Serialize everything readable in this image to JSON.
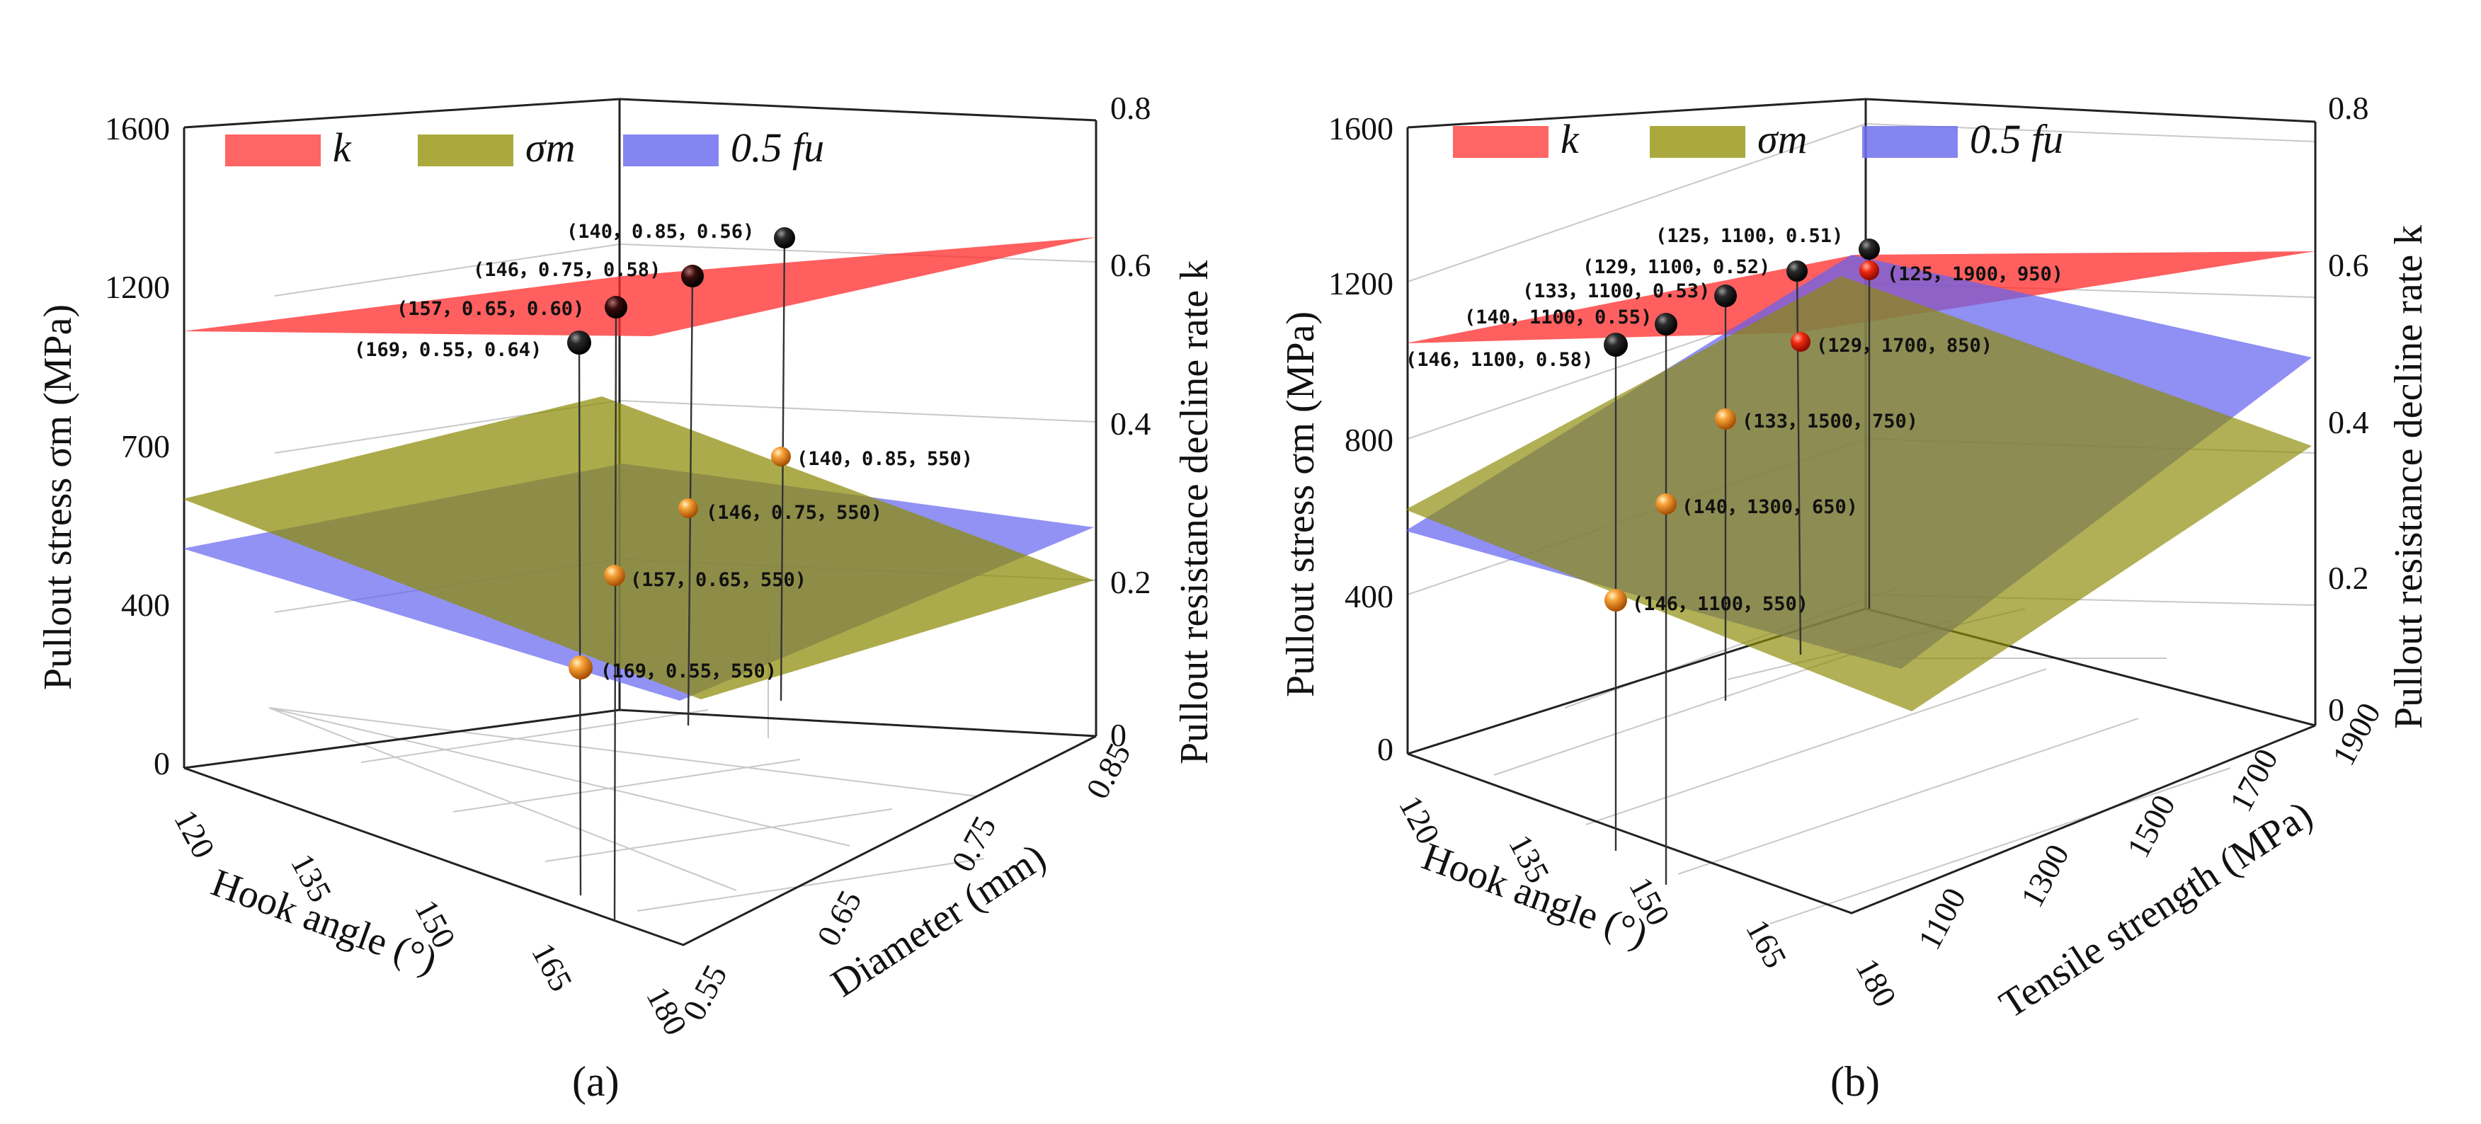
{
  "chart_data": [
    {
      "type": "3d-surface",
      "panel_label": "(a)",
      "xlabel": "Hook angle (°)",
      "ylabel": "Diameter (mm)",
      "zlabel_left": "Pullout stress σm (MPa)",
      "zlabel_right": "Pullout resistance decline rate k",
      "x_ticks": [
        "120",
        "135",
        "150",
        "165",
        "180"
      ],
      "y_ticks": [
        "0.55",
        "0.65",
        "0.75",
        "0.85"
      ],
      "z_left_ticks": [
        "0",
        "400",
        "700",
        "1200",
        "1600"
      ],
      "z_right_ticks": [
        "0",
        "0.2",
        "0.4",
        "0.6",
        "0.8"
      ],
      "legend": [
        {
          "label": "k",
          "color": "#ff4a4a"
        },
        {
          "label": "σm",
          "color": "#9c9a1c"
        },
        {
          "label": "0.5 fu",
          "color": "#7070ee"
        }
      ],
      "k_points": [
        {
          "label": "(169，0.55，0.64)"
        },
        {
          "label": "(157，0.65，0.60)"
        },
        {
          "label": "(146，0.75，0.58)"
        },
        {
          "label": "(140，0.85，0.56)"
        }
      ],
      "stress_points": [
        {
          "label": "(169，0.55，550)"
        },
        {
          "label": "(157，0.65，550)"
        },
        {
          "label": "(146，0.75，550)"
        },
        {
          "label": "(140，0.85，550)"
        }
      ]
    },
    {
      "type": "3d-surface",
      "panel_label": "(b)",
      "xlabel": "Hook angle (°)",
      "ylabel": "Tensile strength (MPa)",
      "zlabel_left": "Pullout stress σm (MPa)",
      "zlabel_right": "Pullout resistance decline rate k",
      "x_ticks": [
        "120",
        "135",
        "150",
        "165",
        "180"
      ],
      "y_ticks": [
        "1100",
        "1300",
        "1500",
        "1700",
        "1900"
      ],
      "z_left_ticks": [
        "0",
        "400",
        "800",
        "1200",
        "1600"
      ],
      "z_right_ticks": [
        "0",
        "0.2",
        "0.4",
        "0.6",
        "0.8"
      ],
      "legend": [
        {
          "label": "k",
          "color": "#ff4a4a"
        },
        {
          "label": "σm",
          "color": "#9c9a1c"
        },
        {
          "label": "0.5 fu",
          "color": "#7070ee"
        }
      ],
      "k_points": [
        {
          "label": "(146，1100，0.58)"
        },
        {
          "label": "(140，1100，0.55)"
        },
        {
          "label": "(133，1100，0.53)"
        },
        {
          "label": "(129，1100，0.52)"
        },
        {
          "label": "(125，1100，0.51)"
        }
      ],
      "stress_points": [
        {
          "label": "(146，1100，550)"
        },
        {
          "label": "(140，1300，650)"
        },
        {
          "label": "(133，1500，750)"
        },
        {
          "label": "(129，1700，850)"
        },
        {
          "label": "(125，1900，950)"
        }
      ]
    }
  ]
}
